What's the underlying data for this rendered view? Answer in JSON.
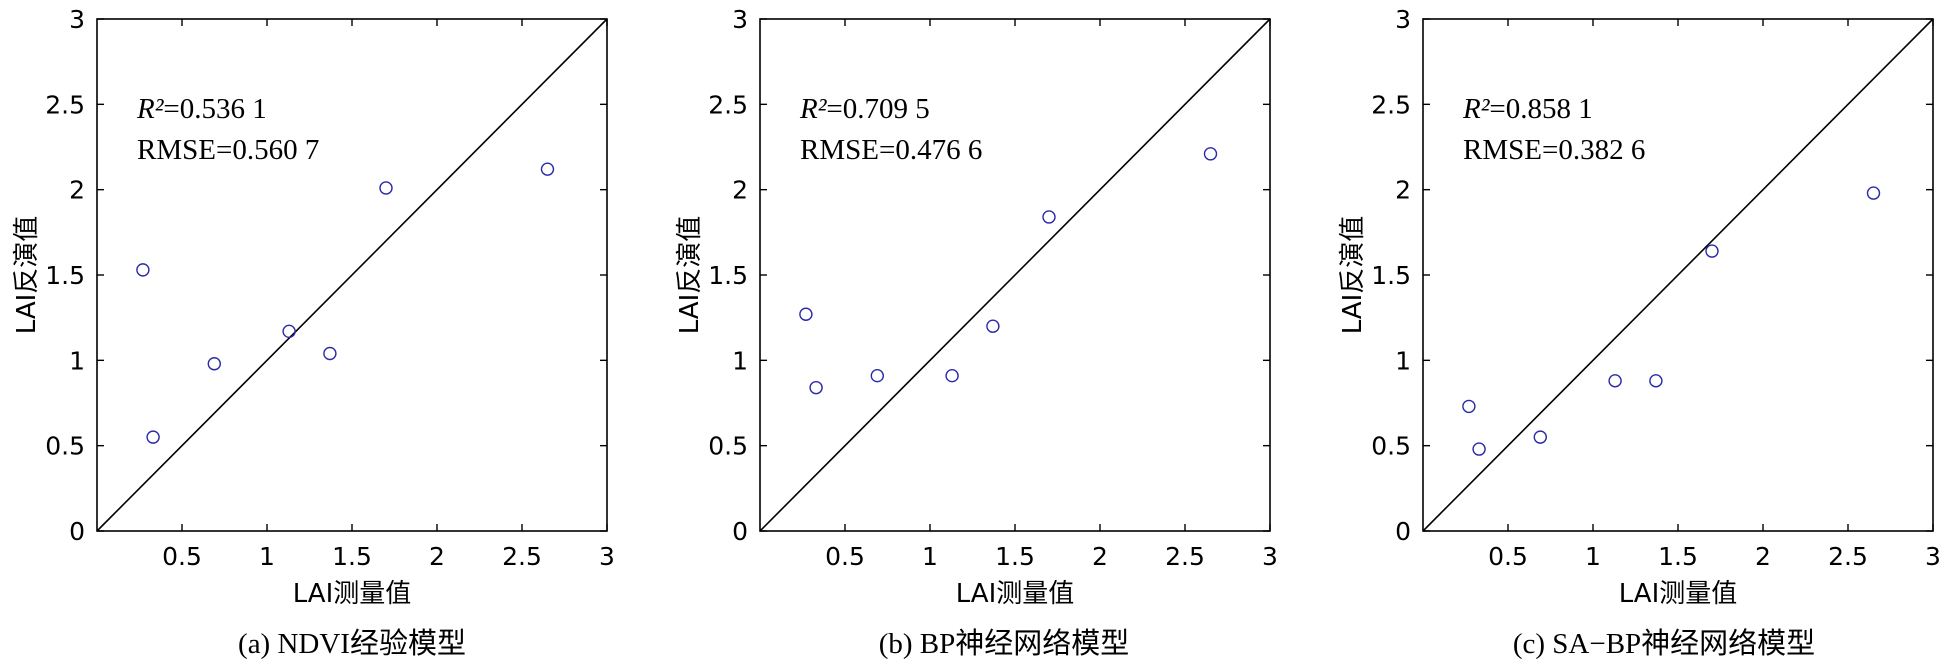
{
  "chart_data": [
    {
      "type": "scatter",
      "xlabel": "LAI测量值",
      "ylabel": "LAI反演值",
      "xlim": [
        0,
        3
      ],
      "ylim": [
        0,
        3
      ],
      "xticks": [
        "0.5",
        "1",
        "1.5",
        "2",
        "2.5",
        "3"
      ],
      "yticks": [
        "0",
        "0.5",
        "1",
        "1.5",
        "2",
        "2.5",
        "3"
      ],
      "reference_line": "y = x",
      "r2_symbol": "R²",
      "r2_value": "=0.536 1",
      "rmse_text": "RMSE=0.560 7",
      "caption": "(a) NDVI经验模型",
      "marker": "circle",
      "marker_color": "#2a2aa8",
      "points": [
        {
          "x": 0.27,
          "y": 1.53
        },
        {
          "x": 0.33,
          "y": 0.55
        },
        {
          "x": 0.69,
          "y": 0.98
        },
        {
          "x": 1.13,
          "y": 1.17
        },
        {
          "x": 1.37,
          "y": 1.04
        },
        {
          "x": 1.7,
          "y": 2.01
        },
        {
          "x": 2.65,
          "y": 2.12
        }
      ]
    },
    {
      "type": "scatter",
      "xlabel": "LAI测量值",
      "ylabel": "LAI反演值",
      "xlim": [
        0,
        3
      ],
      "ylim": [
        0,
        3
      ],
      "xticks": [
        "0.5",
        "1",
        "1.5",
        "2",
        "2.5",
        "3"
      ],
      "yticks": [
        "0",
        "0.5",
        "1",
        "1.5",
        "2",
        "2.5",
        "3"
      ],
      "reference_line": "y = x",
      "r2_symbol": "R²",
      "r2_value": "=0.709 5",
      "rmse_text": "RMSE=0.476 6",
      "caption": "(b) BP神经网络模型",
      "marker": "circle",
      "marker_color": "#2a2aa8",
      "points": [
        {
          "x": 0.27,
          "y": 1.27
        },
        {
          "x": 0.33,
          "y": 0.84
        },
        {
          "x": 0.69,
          "y": 0.91
        },
        {
          "x": 1.13,
          "y": 0.91
        },
        {
          "x": 1.37,
          "y": 1.2
        },
        {
          "x": 1.7,
          "y": 1.84
        },
        {
          "x": 2.65,
          "y": 2.21
        }
      ]
    },
    {
      "type": "scatter",
      "xlabel": "LAI测量值",
      "ylabel": "LAI反演值",
      "xlim": [
        0,
        3
      ],
      "ylim": [
        0,
        3
      ],
      "xticks": [
        "0.5",
        "1",
        "1.5",
        "2",
        "2.5",
        "3"
      ],
      "yticks": [
        "0",
        "0.5",
        "1",
        "1.5",
        "2",
        "2.5",
        "3"
      ],
      "reference_line": "y = x",
      "r2_symbol": "R²",
      "r2_value": "=0.858 1",
      "rmse_text": "RMSE=0.382 6",
      "caption": "(c) SA−BP神经网络模型",
      "marker": "circle",
      "marker_color": "#2a2aa8",
      "points": [
        {
          "x": 0.27,
          "y": 0.73
        },
        {
          "x": 0.33,
          "y": 0.48
        },
        {
          "x": 0.69,
          "y": 0.55
        },
        {
          "x": 1.13,
          "y": 0.88
        },
        {
          "x": 1.37,
          "y": 0.88
        },
        {
          "x": 1.7,
          "y": 1.64
        },
        {
          "x": 2.65,
          "y": 1.98
        }
      ]
    }
  ]
}
